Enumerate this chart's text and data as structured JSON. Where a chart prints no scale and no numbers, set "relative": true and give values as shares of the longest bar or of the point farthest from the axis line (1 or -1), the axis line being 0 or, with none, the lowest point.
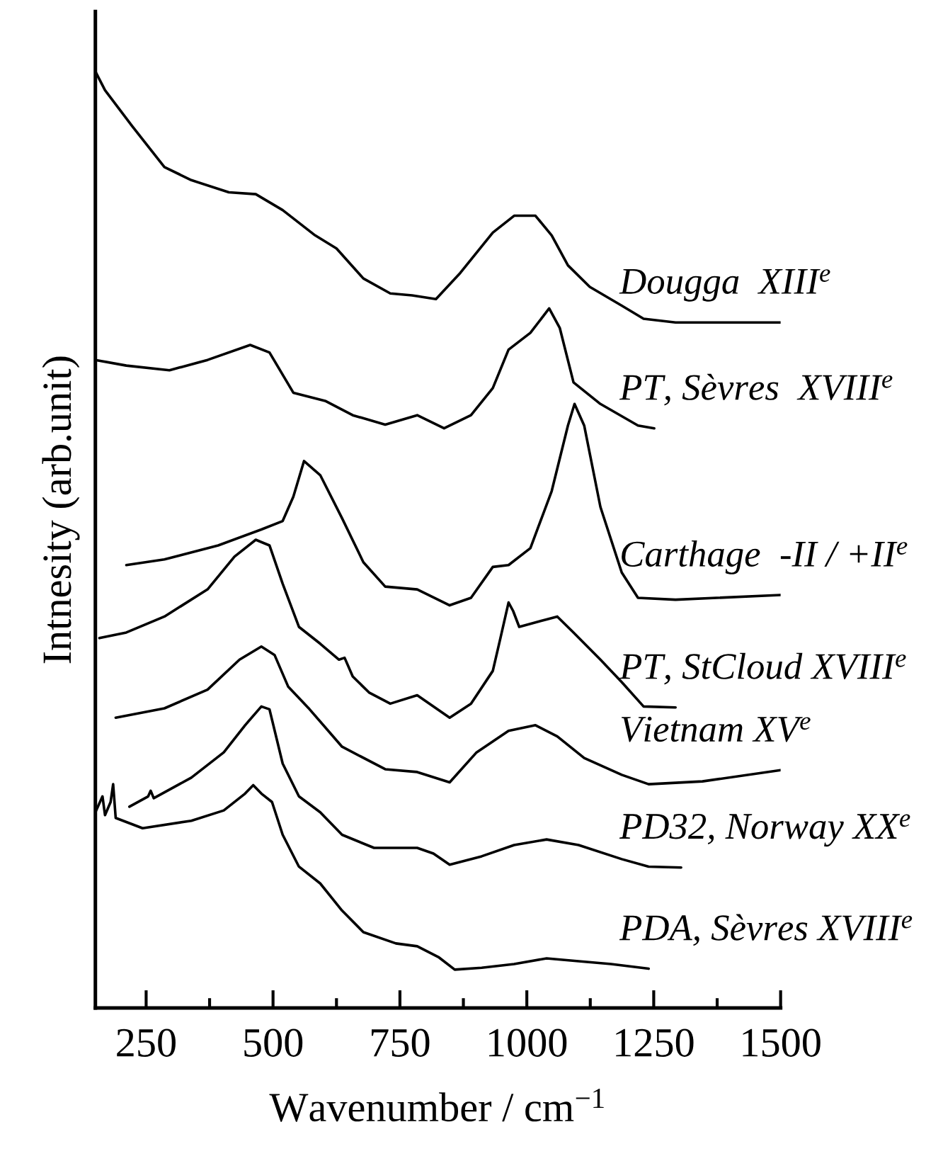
{
  "chart_data": {
    "type": "line",
    "relative": true,
    "xlabel": "Wavenumber / cm$^{−1}$",
    "ylabel": "Intnesity (arb.unit)",
    "xlim": [
      150,
      1500
    ],
    "xticks": [
      250,
      {
        "value": 375,
        "label": null
      },
      500,
      {
        "value": 625,
        "label": null
      },
      750,
      {
        "value": 875,
        "label": null
      },
      1000,
      {
        "value": 1125,
        "label": null
      },
      1250,
      {
        "value": 1375,
        "label": null
      },
      1500
    ],
    "series": [
      {
        "name": "Dougga  XIII$^{e}$",
        "color": "#000000",
        "x": [
          150,
          169,
          222,
          286,
          339,
          413,
          466,
          519,
          583,
          625,
          678,
          731,
          774,
          821,
          869,
          933,
          975,
          1017,
          1049,
          1081,
          1124,
          1187,
          1230,
          1293,
          1500
        ],
        "values": [
          1.0,
          0.98,
          0.942,
          0.898,
          0.884,
          0.871,
          0.869,
          0.852,
          0.825,
          0.811,
          0.779,
          0.763,
          0.761,
          0.757,
          0.785,
          0.828,
          0.846,
          0.846,
          0.825,
          0.793,
          0.77,
          0.75,
          0.736,
          0.732,
          0.732
        ]
      },
      {
        "name": "PT, Sèvres  XVIII$^{e}$",
        "color": "#000000",
        "x": [
          150,
          211,
          296,
          371,
          455,
          493,
          540,
          604,
          657,
          721,
          784,
          837,
          890,
          933,
          964,
          1007,
          1044,
          1065,
          1092,
          1145,
          1219,
          1251
        ],
        "values": [
          0.692,
          0.686,
          0.681,
          0.692,
          0.708,
          0.7,
          0.657,
          0.648,
          0.633,
          0.623,
          0.633,
          0.619,
          0.633,
          0.662,
          0.703,
          0.721,
          0.747,
          0.726,
          0.668,
          0.645,
          0.622,
          0.619
        ]
      },
      {
        "name": "Carthage  -II / +II$^{e}$",
        "color": "#000000",
        "x": [
          211,
          286,
          392,
          477,
          519,
          540,
          561,
          593,
          636,
          678,
          721,
          784,
          848,
          890,
          933,
          964,
          1007,
          1049,
          1081,
          1094,
          1113,
          1145,
          1187,
          1219,
          1293,
          1500
        ],
        "values": [
          0.473,
          0.479,
          0.494,
          0.511,
          0.52,
          0.546,
          0.584,
          0.569,
          0.523,
          0.476,
          0.45,
          0.447,
          0.43,
          0.438,
          0.471,
          0.473,
          0.491,
          0.552,
          0.622,
          0.645,
          0.622,
          0.535,
          0.465,
          0.438,
          0.436,
          0.441
        ]
      },
      {
        "name": "PT, StCloud XVIII$^{e}$",
        "color": "#000000",
        "x": [
          158,
          211,
          286,
          371,
          424,
          466,
          493,
          519,
          551,
          593,
          630,
          641,
          657,
          689,
          731,
          784,
          848,
          890,
          933,
          948,
          964,
          973,
          985,
          1039,
          1060,
          1092,
          1145,
          1187,
          1230,
          1293
        ],
        "values": [
          0.395,
          0.401,
          0.418,
          0.447,
          0.482,
          0.5,
          0.494,
          0.453,
          0.407,
          0.389,
          0.372,
          0.374,
          0.354,
          0.337,
          0.325,
          0.334,
          0.31,
          0.325,
          0.36,
          0.395,
          0.433,
          0.424,
          0.407,
          0.415,
          0.418,
          0.401,
          0.372,
          0.348,
          0.322,
          0.321
        ]
      },
      {
        "name": "Vietnam XV$^{e}$",
        "color": "#000000",
        "x": [
          190,
          286,
          371,
          434,
          477,
          503,
          530,
          572,
          636,
          721,
          784,
          848,
          901,
          964,
          1017,
          1060,
          1113,
          1187,
          1240,
          1346,
          1500
        ],
        "values": [
          0.31,
          0.32,
          0.34,
          0.372,
          0.386,
          0.377,
          0.343,
          0.319,
          0.279,
          0.255,
          0.252,
          0.241,
          0.273,
          0.296,
          0.302,
          0.29,
          0.267,
          0.249,
          0.239,
          0.242,
          0.254
        ]
      },
      {
        "name": "PD32, Norway XX$^{e}$",
        "color": "#000000",
        "x": [
          217,
          254,
          259,
          265,
          339,
          403,
          445,
          477,
          493,
          519,
          551,
          593,
          636,
          699,
          784,
          816,
          848,
          911,
          975,
          1039,
          1102,
          1187,
          1240,
          1304
        ],
        "values": [
          0.215,
          0.226,
          0.232,
          0.224,
          0.246,
          0.273,
          0.302,
          0.322,
          0.319,
          0.261,
          0.226,
          0.209,
          0.185,
          0.171,
          0.171,
          0.165,
          0.153,
          0.162,
          0.174,
          0.18,
          0.174,
          0.159,
          0.151,
          0.15
        ]
      },
      {
        "name": "PDA, Sèvres XVIII$^{e}$",
        "color": "#000000",
        "x": [
          150,
          164,
          169,
          180,
          185,
          190,
          243,
          339,
          403,
          445,
          461,
          477,
          498,
          519,
          551,
          593,
          636,
          678,
          742,
          784,
          827,
          858,
          911,
          975,
          1039,
          1102,
          1166,
          1240
        ],
        "values": [
          0.209,
          0.226,
          0.206,
          0.22,
          0.239,
          0.203,
          0.192,
          0.2,
          0.211,
          0.229,
          0.238,
          0.229,
          0.22,
          0.185,
          0.151,
          0.133,
          0.104,
          0.081,
          0.069,
          0.066,
          0.054,
          0.041,
          0.043,
          0.047,
          0.053,
          0.05,
          0.047,
          0.042
        ]
      }
    ]
  }
}
